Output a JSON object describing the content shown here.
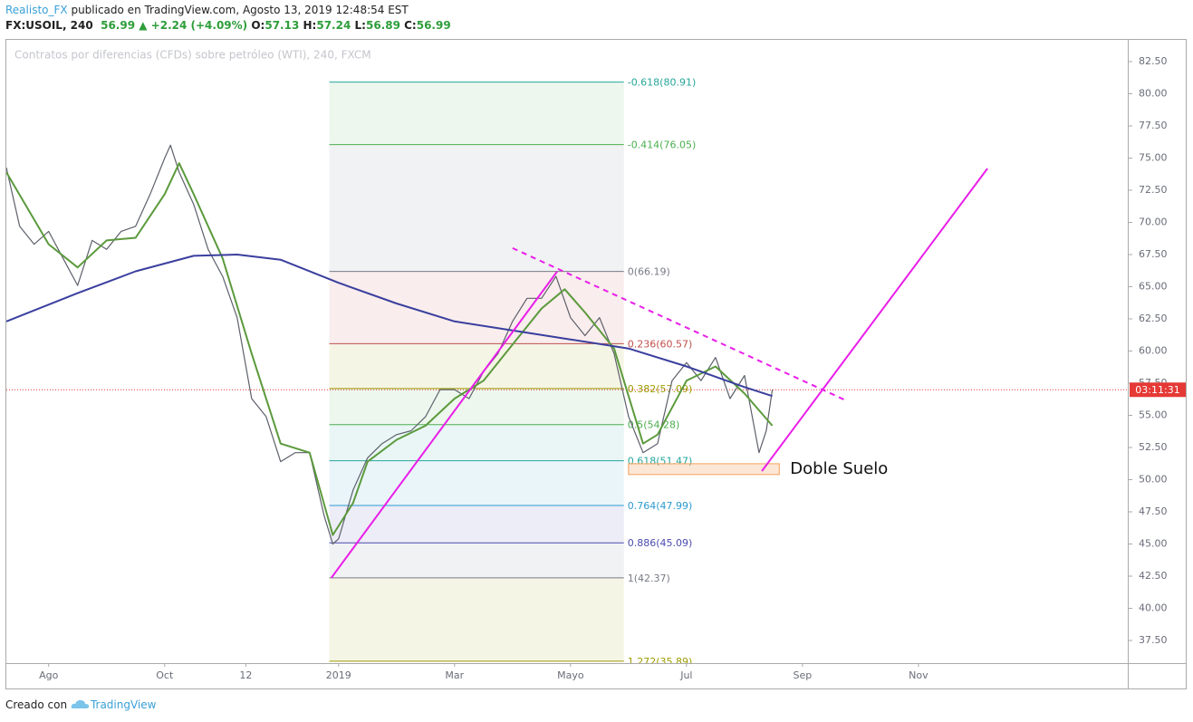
{
  "header": {
    "author": "Realisto_FX",
    "published": "publicado en TradingView.com, Agosto 13, 2019 12:48:54 EST",
    "symbol": "FX:USOIL, 240",
    "last": "56.99",
    "arrow": "▲",
    "change": "+2.24 (+4.09%)",
    "ohlc": [
      [
        "O:",
        "57.13"
      ],
      [
        "H:",
        "57.24"
      ],
      [
        "L:",
        "56.89"
      ],
      [
        "C:",
        "56.99"
      ]
    ]
  },
  "footer": {
    "text": "Creado con",
    "brand": "TradingView"
  },
  "chart_data": {
    "type": "line",
    "title": "Contratos por diferencias (CFDs) sobre petróleo (WTI), 240, FXCM",
    "xlim": [
      7.27,
      26.61
    ],
    "ylim": [
      35.74,
      84.19
    ],
    "xticks": [
      {
        "value": 8,
        "label": "Ago"
      },
      {
        "value": 10,
        "label": "Oct"
      },
      {
        "value": 11.4,
        "label": "12"
      },
      {
        "value": 13,
        "label": "2019"
      },
      {
        "value": 15,
        "label": "Mar"
      },
      {
        "value": 17,
        "label": "Mayo"
      },
      {
        "value": 19,
        "label": "Jul"
      },
      {
        "value": 21,
        "label": "Sep"
      },
      {
        "value": 23,
        "label": "Nov"
      }
    ],
    "yticks": [
      {
        "value": 37.5,
        "label": "37.50"
      },
      {
        "value": 40,
        "label": "40.00"
      },
      {
        "value": 42.5,
        "label": "42.50"
      },
      {
        "value": 45,
        "label": "45.00"
      },
      {
        "value": 47.5,
        "label": "47.50"
      },
      {
        "value": 50,
        "label": "50.00"
      },
      {
        "value": 52.5,
        "label": "52.50"
      },
      {
        "value": 55,
        "label": "55.00"
      },
      {
        "value": 57.5,
        "label": "57.50"
      },
      {
        "value": 60,
        "label": "60.00"
      },
      {
        "value": 62.5,
        "label": "62.50"
      },
      {
        "value": 65,
        "label": "65.00"
      },
      {
        "value": 67.5,
        "label": "67.50"
      },
      {
        "value": 70,
        "label": "70.00"
      },
      {
        "value": 72.5,
        "label": "72.50"
      },
      {
        "value": 75,
        "label": "75.00"
      },
      {
        "value": 77.5,
        "label": "77.50"
      },
      {
        "value": 80,
        "label": "80.00"
      },
      {
        "value": 82.5,
        "label": "82.50"
      }
    ],
    "series": [
      {
        "color": "#5d606b",
        "x": [
          7.27,
          7.5,
          7.75,
          8.0,
          8.25,
          8.5,
          8.75,
          9.0,
          9.25,
          9.5,
          9.75,
          10.0,
          10.1,
          10.25,
          10.5,
          10.75,
          11.0,
          11.25,
          11.5,
          11.75,
          12.0,
          12.25,
          12.5,
          12.75,
          12.9,
          13.0,
          13.25,
          13.5,
          13.75,
          14.0,
          14.25,
          14.5,
          14.75,
          15.0,
          15.25,
          15.5,
          15.75,
          16.0,
          16.25,
          16.5,
          16.75,
          17.0,
          17.25,
          17.5,
          17.75,
          18.0,
          18.25,
          18.5,
          18.75,
          19.0,
          19.25,
          19.5,
          19.75,
          20.0,
          20.25,
          20.375,
          20.48
        ],
        "values": [
          74.26,
          69.7,
          68.3,
          69.3,
          67.2,
          65.1,
          68.6,
          67.9,
          69.3,
          69.7,
          72.2,
          75.0,
          76.0,
          73.9,
          71.4,
          67.9,
          65.8,
          62.6,
          56.3,
          54.9,
          51.4,
          52.1,
          52.1,
          47.2,
          45.0,
          45.4,
          49.2,
          51.7,
          52.8,
          53.5,
          53.8,
          54.9,
          57.0,
          57.0,
          56.3,
          58.4,
          59.8,
          62.3,
          64.1,
          64.1,
          65.8,
          62.6,
          61.2,
          62.6,
          59.8,
          54.9,
          52.1,
          52.8,
          57.7,
          59.1,
          57.7,
          59.5,
          56.3,
          58.1,
          52.1,
          53.8,
          56.99
        ]
      },
      {
        "color": "#5b9a3c",
        "x": [
          7.27,
          8.0,
          8.5,
          9.0,
          9.5,
          10.0,
          10.25,
          10.5,
          11.0,
          11.5,
          12.0,
          12.5,
          12.9,
          13.25,
          13.5,
          14.0,
          14.5,
          15.0,
          15.5,
          16.0,
          16.5,
          16.9,
          17.25,
          17.75,
          18.25,
          18.5,
          19.0,
          19.5,
          20.0,
          20.48
        ],
        "values": [
          73.9,
          68.3,
          66.5,
          68.6,
          68.8,
          72.2,
          74.6,
          72.2,
          67.2,
          59.8,
          52.8,
          52.1,
          45.7,
          48.2,
          51.4,
          53.1,
          54.2,
          56.3,
          57.7,
          60.5,
          63.3,
          64.8,
          63.0,
          60.2,
          52.8,
          53.5,
          57.7,
          58.8,
          56.7,
          54.2
        ]
      },
      {
        "color": "#3a3f9e",
        "x": [
          7.27,
          8.5,
          9.5,
          10.5,
          11.25,
          12.0,
          13.0,
          14.0,
          15.0,
          16.0,
          17.0,
          18.0,
          19.0,
          20.0,
          20.48
        ],
        "values": [
          62.3,
          64.5,
          66.2,
          67.4,
          67.5,
          67.1,
          65.3,
          63.7,
          62.3,
          61.6,
          60.9,
          60.2,
          58.8,
          57.2,
          56.5
        ]
      }
    ],
    "fibonacci": {
      "xlim": [
        12.84,
        17.92
      ],
      "levels": [
        {
          "label": "-0.618(80.91)",
          "price": 80.91,
          "color": "#26a69a"
        },
        {
          "label": "-0.414(76.05)",
          "price": 76.05,
          "color": "#4caf50"
        },
        {
          "label": "0(66.19)",
          "price": 66.19,
          "color": "#787b86"
        },
        {
          "label": "0.236(60.57)",
          "price": 60.57,
          "color": "#c0504d"
        },
        {
          "label": "0.382(57.09)",
          "price": 57.09,
          "color": "#9c9c00"
        },
        {
          "label": "0.5(54.28)",
          "price": 54.28,
          "color": "#4caf50"
        },
        {
          "label": "0.618(51.47)",
          "price": 51.47,
          "color": "#26a69a"
        },
        {
          "label": "0.764(47.99)",
          "price": 47.99,
          "color": "#2e9ad0"
        },
        {
          "label": "0.886(45.09)",
          "price": 45.09,
          "color": "#4b4bb0"
        },
        {
          "label": "1(42.37)",
          "price": 42.37,
          "color": "#787b86"
        },
        {
          "label": "1.272(35.89)",
          "price": 35.89,
          "color": "#9c9c00"
        }
      ]
    },
    "trendlines": [
      {
        "x": [
          12.875,
          16.77
        ],
        "y": [
          42.37,
          66.19
        ],
        "color": "#e91ee9",
        "dashed": false
      },
      {
        "x": [
          16.0,
          21.78
        ],
        "y": [
          68.0,
          56.1
        ],
        "color": "#e91ee9",
        "dashed": true
      },
      {
        "x": [
          20.3,
          24.19
        ],
        "y": [
          50.67,
          74.19
        ],
        "color": "#e91ee9",
        "dashed": false
      }
    ],
    "zone": {
      "x": [
        18.0,
        20.6
      ],
      "y": [
        50.4,
        51.24
      ],
      "color": "#f5a05a",
      "text": "Doble Suelo"
    },
    "last_price": 56.99,
    "countdown": "03:11:31",
    "last_color": "#e53935"
  }
}
